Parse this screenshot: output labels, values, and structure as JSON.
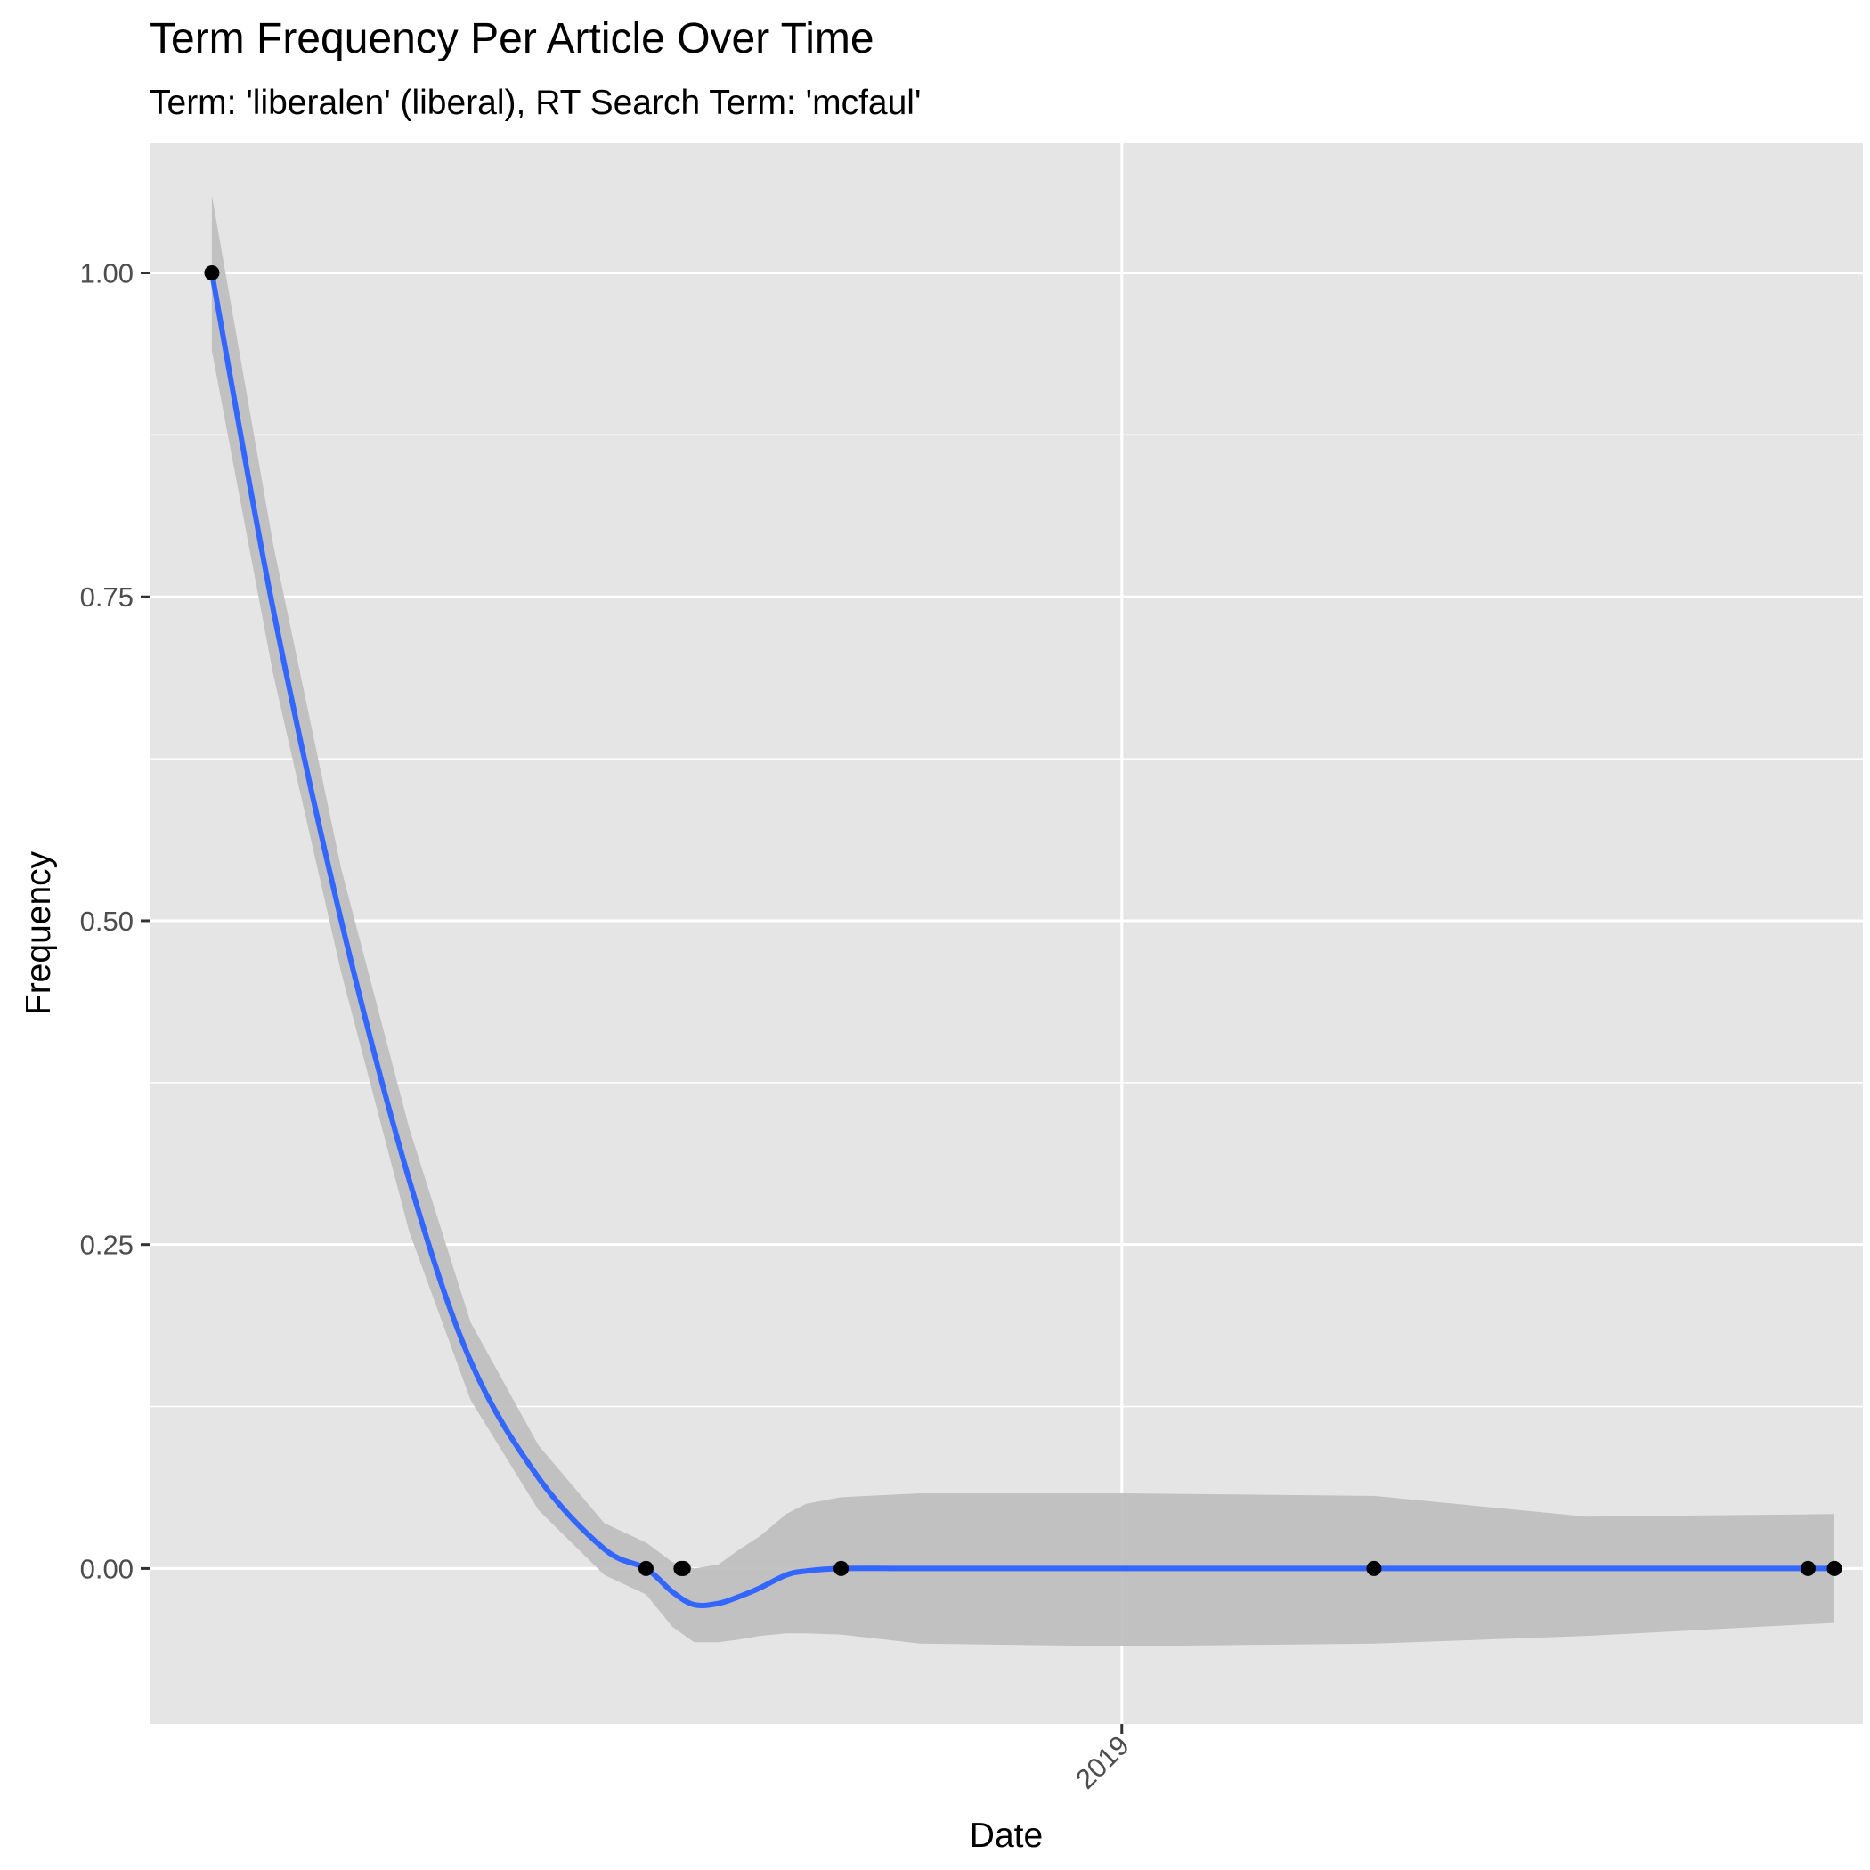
{
  "chart_data": {
    "type": "scatter",
    "title": "Term Frequency Per Article Over Time",
    "subtitle": "Term: 'liberalen' (liberal), RT Search Term: 'mcfaul'",
    "xlabel": "Date",
    "ylabel": "Frequency",
    "x_type": "date",
    "xlim": [
      "2017-10-15",
      "2019-12-05"
    ],
    "ylim": [
      -0.12,
      1.1
    ],
    "x_ticks": [
      {
        "value": "2019-01-01",
        "label": "2019"
      }
    ],
    "y_ticks": [
      {
        "value": 0.0,
        "label": "0.00"
      },
      {
        "value": 0.25,
        "label": "0.25"
      },
      {
        "value": 0.5,
        "label": "0.50"
      },
      {
        "value": 0.75,
        "label": "0.75"
      },
      {
        "value": 1.0,
        "label": "1.00"
      }
    ],
    "y_minor_ticks": [
      0.125,
      0.375,
      0.625,
      0.875
    ],
    "grid": true,
    "colors": {
      "panel": "#e5e5e5",
      "grid": "#ffffff",
      "point": "#000000",
      "smooth_line": "#3366ff",
      "ribbon": "#bdbdbd"
    },
    "series": [
      {
        "type": "points",
        "x": [
          "2017-11-12",
          "2018-05-29",
          "2018-06-14",
          "2018-06-15",
          "2018-08-26",
          "2019-04-26",
          "2019-11-10",
          "2019-11-22"
        ],
        "y": [
          1.0,
          0.0,
          0.0,
          0.0,
          0.0,
          0.0,
          0.0,
          0.0
        ]
      },
      {
        "type": "smooth",
        "x": [
          "2017-11-12",
          "2017-12-10",
          "2018-01-10",
          "2018-02-10",
          "2018-03-10",
          "2018-04-10",
          "2018-05-10",
          "2018-05-29",
          "2018-06-10",
          "2018-06-20",
          "2018-07-01",
          "2018-07-10",
          "2018-07-20",
          "2018-08-01",
          "2018-08-10",
          "2018-08-26",
          "2018-10-01",
          "2019-01-01",
          "2019-04-26",
          "2019-08-01",
          "2019-11-22"
        ],
        "y": [
          1.0,
          0.74,
          0.5,
          0.3,
          0.16,
          0.07,
          0.015,
          0.0,
          -0.018,
          -0.028,
          -0.027,
          -0.022,
          -0.015,
          -0.005,
          -0.002,
          0.0,
          0.0,
          0.0,
          0.0,
          0.0,
          0.0
        ],
        "ci_lower": [
          0.94,
          0.69,
          0.46,
          0.26,
          0.13,
          0.045,
          -0.005,
          -0.02,
          -0.045,
          -0.057,
          -0.057,
          -0.055,
          -0.052,
          -0.05,
          -0.05,
          -0.051,
          -0.058,
          -0.06,
          -0.058,
          -0.052,
          -0.042
        ],
        "ci_upper": [
          1.06,
          0.79,
          0.54,
          0.34,
          0.19,
          0.095,
          0.035,
          0.02,
          0.005,
          0.0,
          0.003,
          0.014,
          0.025,
          0.042,
          0.05,
          0.055,
          0.058,
          0.058,
          0.056,
          0.04,
          0.042
        ]
      }
    ]
  }
}
